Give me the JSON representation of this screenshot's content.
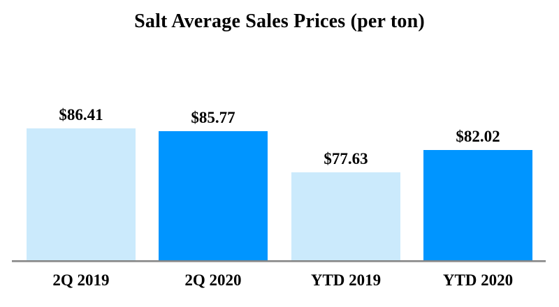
{
  "chart_data": {
    "type": "bar",
    "title": "Salt Average Sales Prices (per ton)",
    "categories": [
      "2Q 2019",
      "2Q 2020",
      "YTD 2019",
      "YTD 2020"
    ],
    "values": [
      86.41,
      85.77,
      77.63,
      82.02
    ],
    "data_labels": [
      "$86.41",
      "$85.77",
      "$77.63",
      "$82.02"
    ],
    "bar_colors": [
      "#CBEAFC",
      "#0095FF",
      "#CBEAFC",
      "#0095FF"
    ],
    "xlabel": "",
    "ylabel": "",
    "ylim": [
      60,
      90
    ],
    "grid": false,
    "legend": "none",
    "axis_line_color": "#8A8A8A",
    "background_color": "#FFFFFF",
    "text_color": "#000000"
  }
}
